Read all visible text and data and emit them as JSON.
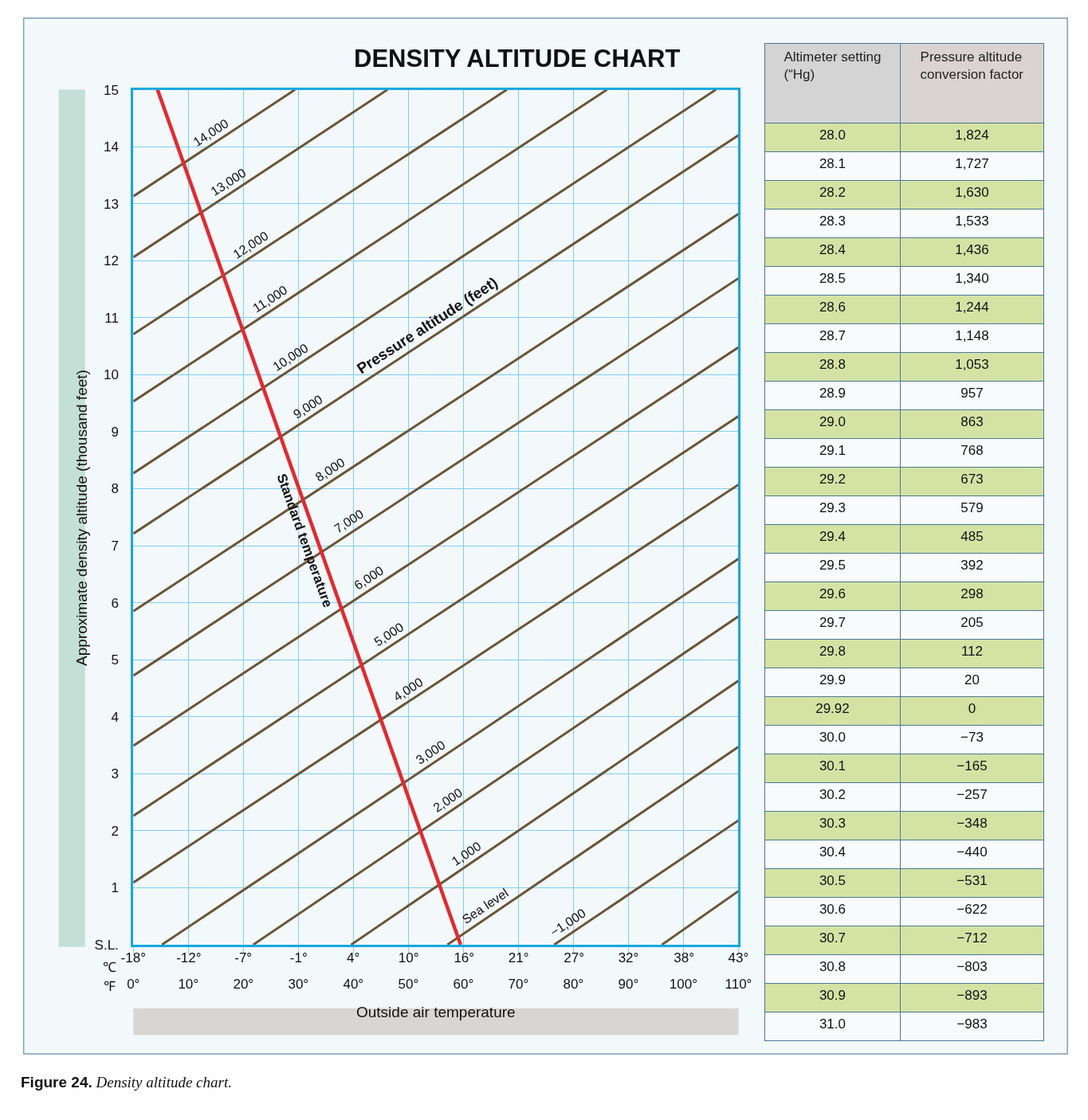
{
  "chart_data": [
    {
      "type": "line",
      "title": "DENSITY ALTITUDE CHART",
      "xlabel": "Outside air temperature",
      "ylabel": "Approximate density altitude (thousand feet)",
      "xlim": [
        0,
        110
      ],
      "ylim": [
        0,
        15
      ],
      "xticks": [
        {
          "value": 0,
          "label": "0°"
        },
        {
          "value": 10,
          "label": "10°"
        },
        {
          "value": 20,
          "label": "20°"
        },
        {
          "value": 30,
          "label": "30°"
        },
        {
          "value": 40,
          "label": "40°"
        },
        {
          "value": 50,
          "label": "50°"
        },
        {
          "value": 60,
          "label": "60°"
        },
        {
          "value": 70,
          "label": "70°"
        },
        {
          "value": 80,
          "label": "80°"
        },
        {
          "value": 90,
          "label": "90°"
        },
        {
          "value": 100,
          "label": "100°"
        },
        {
          "value": 110,
          "label": "110°"
        }
      ],
      "x2lim": [
        -17.8,
        43.3
      ],
      "x2ticks": [
        {
          "value": -17.8,
          "label": "-18°"
        },
        {
          "value": -12.2,
          "label": "-12°"
        },
        {
          "value": -6.7,
          "label": "-7°"
        },
        {
          "value": -1.1,
          "label": "-1°"
        },
        {
          "value": 4.4,
          "label": "4°"
        },
        {
          "value": 10,
          "label": "10°"
        },
        {
          "value": 15.6,
          "label": "16°"
        },
        {
          "value": 21.1,
          "label": "21°"
        },
        {
          "value": 26.7,
          "label": "27°"
        },
        {
          "value": 32.2,
          "label": "32°"
        },
        {
          "value": 37.8,
          "label": "38°"
        },
        {
          "value": 43.3,
          "label": "43°"
        }
      ],
      "yticks": [
        {
          "value": 0,
          "label": "S.L."
        },
        1,
        2,
        3,
        4,
        5,
        6,
        7,
        8,
        9,
        10,
        11,
        12,
        13,
        14,
        15
      ],
      "grid": true,
      "marker": "none",
      "line_style": "solid",
      "annotations": [
        "Pressure altitude (feet)",
        "℃",
        "℉",
        "Figure 24. Density altitude chart."
      ],
      "series": [
        {
          "name": "14,000",
          "color": "#6b5537",
          "x": [
            0,
            29.4
          ],
          "values": [
            13.13,
            15
          ]
        },
        {
          "name": "13,000",
          "color": "#6b5537",
          "x": [
            0,
            46.2
          ],
          "values": [
            12.06,
            15
          ]
        },
        {
          "name": "12,000",
          "color": "#6b5537",
          "x": [
            0,
            67.9
          ],
          "values": [
            10.71,
            15
          ]
        },
        {
          "name": "11,000",
          "color": "#6b5537",
          "x": [
            0,
            86.1
          ],
          "values": [
            9.53,
            15
          ]
        },
        {
          "name": "10,000",
          "color": "#6b5537",
          "x": [
            0,
            105.9
          ],
          "values": [
            8.27,
            15
          ]
        },
        {
          "name": "9,000",
          "color": "#6b5537",
          "x": [
            0,
            110
          ],
          "values": [
            7.21,
            14.2
          ]
        },
        {
          "name": "8,000",
          "color": "#6b5537",
          "x": [
            0,
            110
          ],
          "values": [
            5.85,
            12.82
          ]
        },
        {
          "name": "7,000",
          "color": "#6b5537",
          "x": [
            0,
            110
          ],
          "values": [
            4.72,
            11.69
          ]
        },
        {
          "name": "6,000",
          "color": "#6b5537",
          "x": [
            0,
            110
          ],
          "values": [
            3.49,
            10.48
          ]
        },
        {
          "name": "5,000",
          "color": "#6b5537",
          "x": [
            0,
            110
          ],
          "values": [
            2.26,
            9.27
          ]
        },
        {
          "name": "4,000",
          "color": "#6b5537",
          "x": [
            0,
            110
          ],
          "values": [
            1.09,
            8.07
          ]
        },
        {
          "name": "3,000",
          "color": "#6b5537",
          "x": [
            5.2,
            110
          ],
          "values": [
            0,
            6.77
          ]
        },
        {
          "name": "2,000",
          "color": "#6b5537",
          "x": [
            21.8,
            110
          ],
          "values": [
            0,
            5.76
          ]
        },
        {
          "name": "1,000",
          "color": "#6b5537",
          "x": [
            39.6,
            110
          ],
          "values": [
            0,
            4.63
          ]
        },
        {
          "name": "Sea level",
          "color": "#6b5537",
          "x": [
            57.1,
            110
          ],
          "values": [
            0,
            3.47
          ]
        },
        {
          "name": "−1,000",
          "color": "#6b5537",
          "x": [
            76.5,
            110
          ],
          "values": [
            0,
            2.18
          ]
        },
        {
          "color": "#6b5537",
          "x": [
            96.1,
            110
          ],
          "values": [
            0,
            0.94
          ]
        },
        {
          "name": "Standard temperature",
          "color": "#e8262b",
          "x": [
            4.4,
            59.5
          ],
          "values": [
            15,
            0
          ]
        }
      ]
    },
    {
      "type": "other",
      "xlabel": "Altimeter setting\n(“Hg)",
      "ylabel": "Pressure altitude\nconversion factor",
      "categories": [
        "28.0",
        "28.1",
        "28.2",
        "28.3",
        "28.4",
        "28.5",
        "28.6",
        "28.7",
        "28.8",
        "28.9",
        "29.0",
        "29.1",
        "29.2",
        "29.3",
        "29.4",
        "29.5",
        "29.6",
        "29.7",
        "29.8",
        "29.9",
        "29.92",
        "30.0",
        "30.1",
        "30.2",
        "30.3",
        "30.4",
        "30.5",
        "30.6",
        "30.7",
        "30.8",
        "30.9",
        "31.0"
      ],
      "values": [
        1824,
        1727,
        1630,
        1533,
        1436,
        1340,
        1244,
        1148,
        1053,
        957,
        863,
        768,
        673,
        579,
        485,
        392,
        298,
        205,
        112,
        20,
        0,
        -73,
        -165,
        -257,
        -348,
        -440,
        -531,
        -622,
        -712,
        -803,
        -893,
        -983
      ],
      "value_labels": [
        "1,824",
        "1,727",
        "1,630",
        "1,533",
        "1,436",
        "1,340",
        "1,244",
        "1,148",
        "1,053",
        "957",
        "863",
        "768",
        "673",
        "579",
        "485",
        "392",
        "298",
        "205",
        "112",
        "20",
        "0",
        "−73",
        "−165",
        "−257",
        "−348",
        "−440",
        "−531",
        "−622",
        "−712",
        "−803",
        "−893",
        "−983"
      ]
    }
  ]
}
